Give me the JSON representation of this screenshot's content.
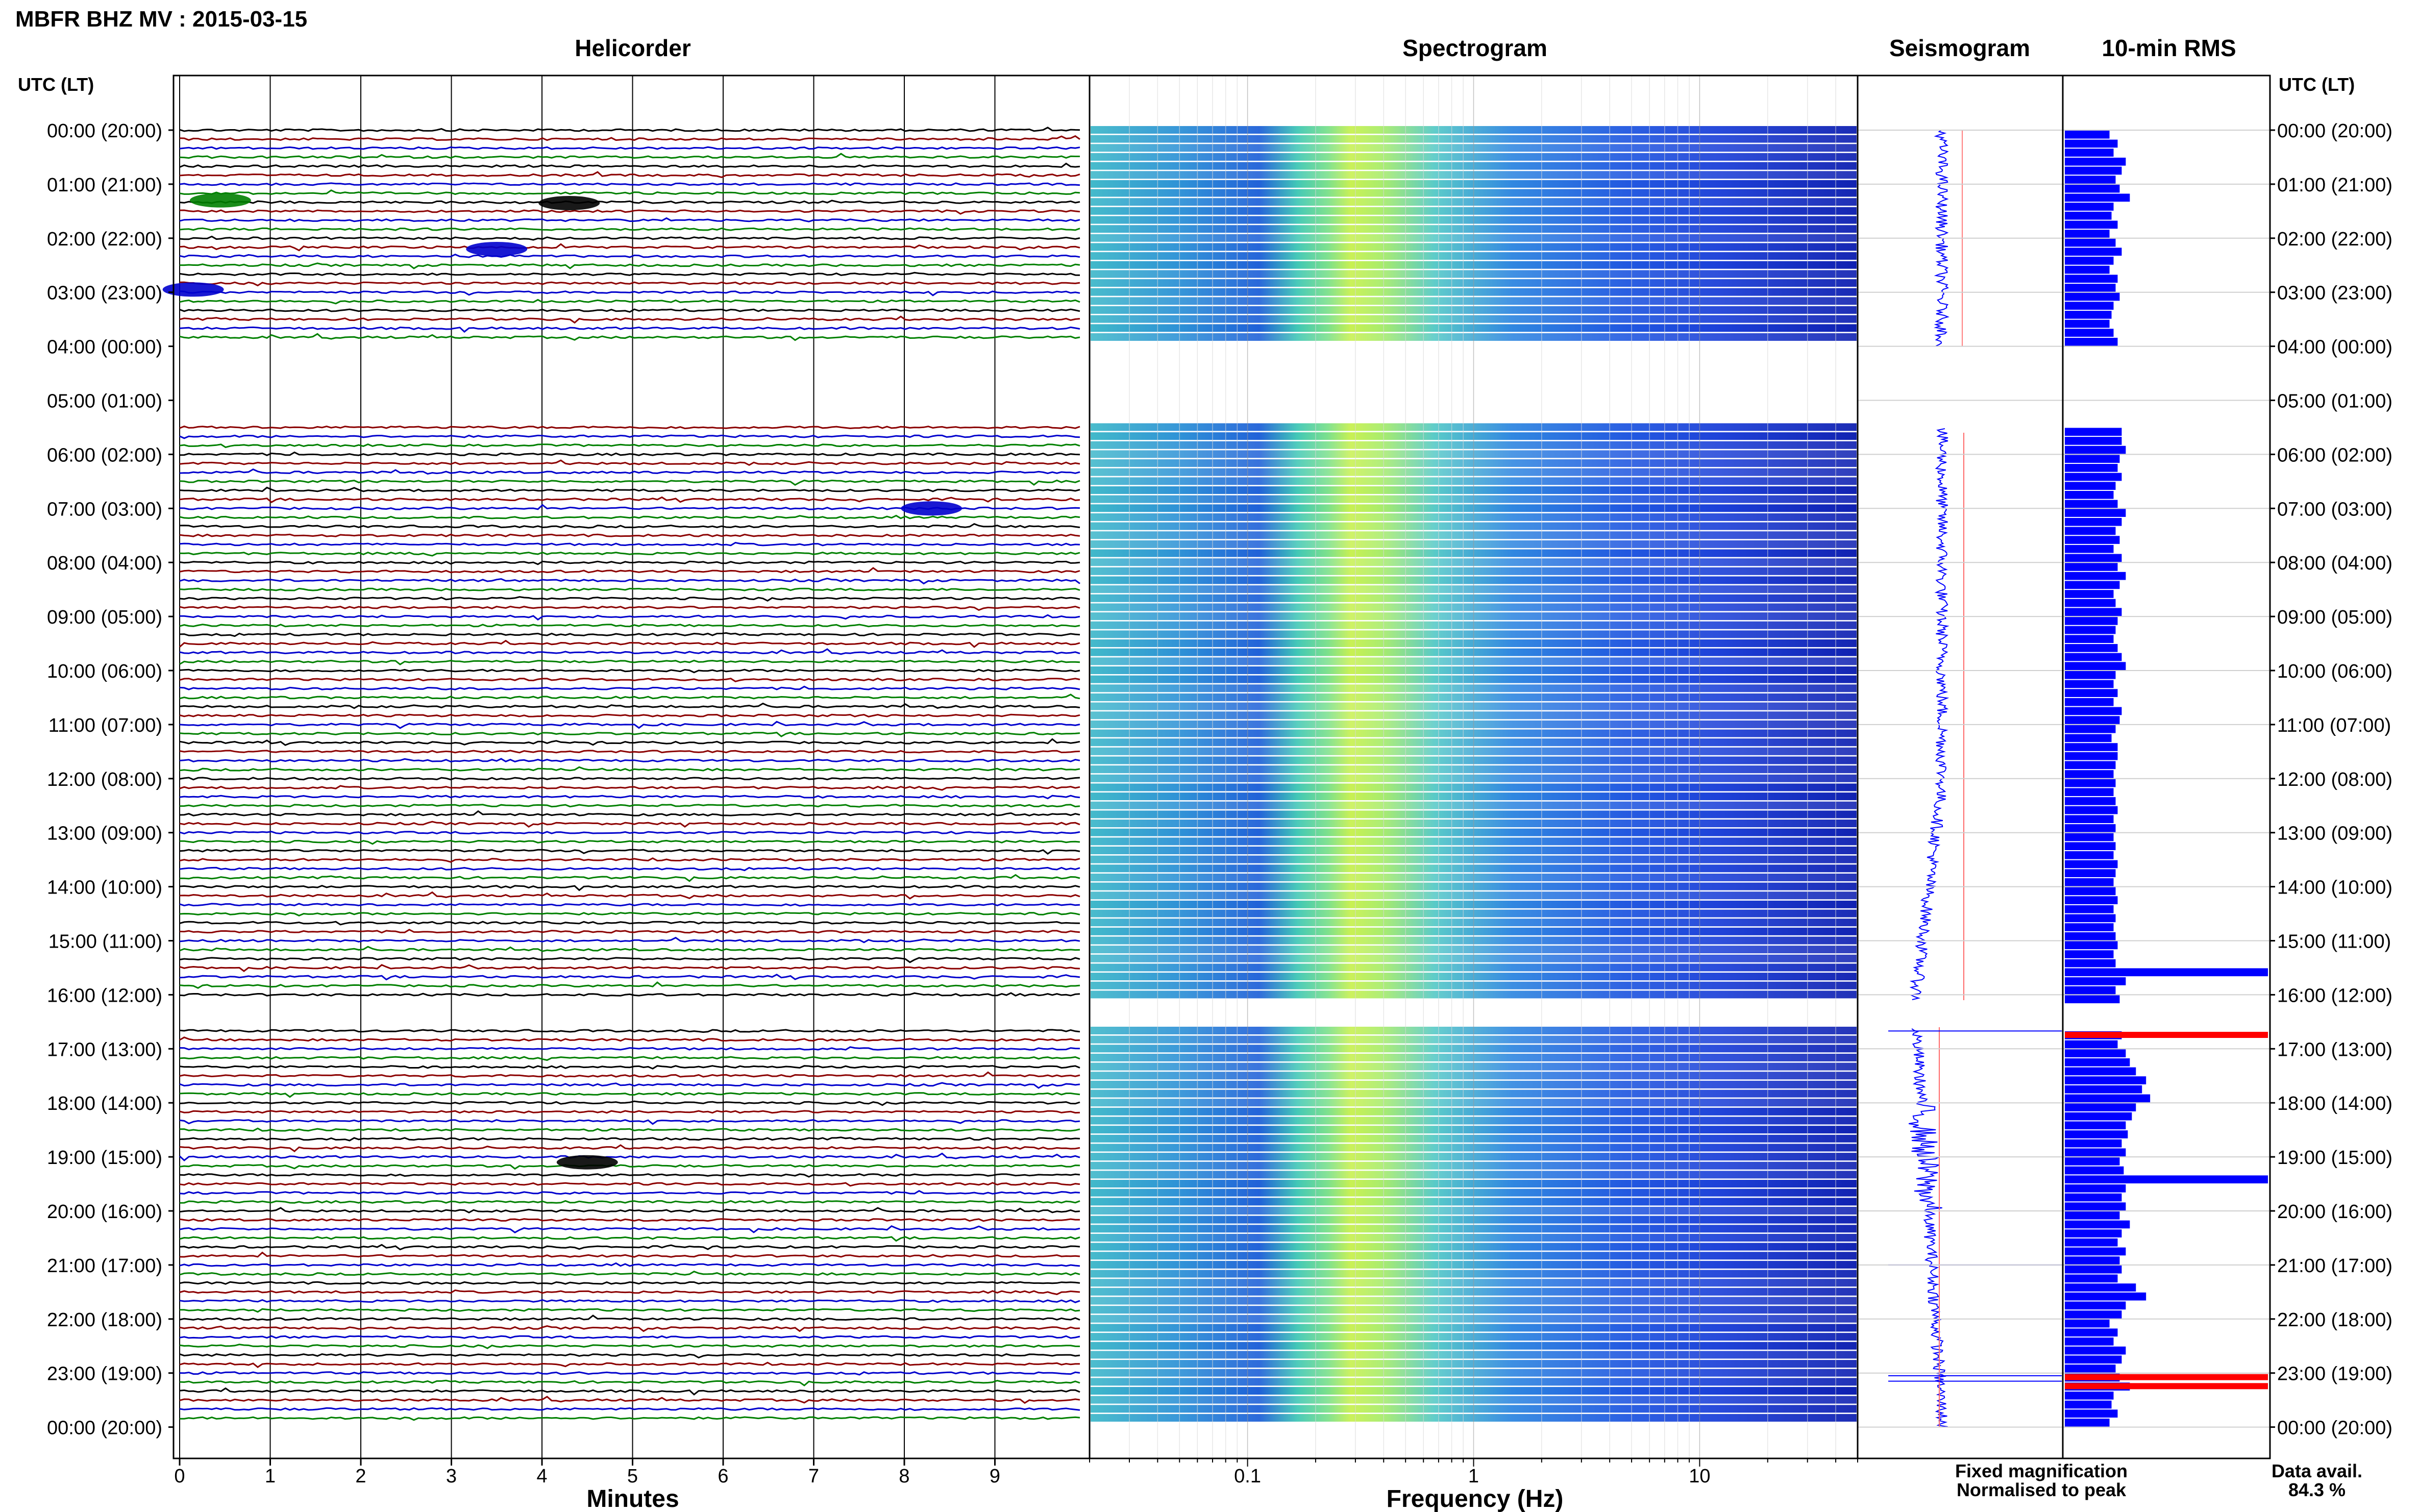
{
  "header": {
    "title": "MBFR BHZ MV : 2015-03-15"
  },
  "panels": {
    "helicorder": "Helicorder",
    "spectrogram": "Spectrogram",
    "seismogram": "Seismogram",
    "rms": "10-min RMS"
  },
  "axis": {
    "utc_lt_left": "UTC (LT)",
    "utc_lt_right": "UTC (LT)",
    "minutes_label": "Minutes",
    "frequency_label": "Frequency (Hz)"
  },
  "legend": {
    "fixed": "Fixed magnification",
    "normalised": "Normalised to peak",
    "fixed_color": "#0000ff",
    "normalised_color": "#ff0000"
  },
  "data_avail": {
    "label": "Data avail.",
    "value": "84.3 %"
  },
  "colors": {
    "trace_cycle": [
      "#000000",
      "#8b0000",
      "#0000cd",
      "#008000"
    ],
    "rms_bar": "#0000ff",
    "rms_peak": "#ff0000"
  },
  "chart_data": [
    {
      "type": "line",
      "title": "Helicorder",
      "xlabel": "Minutes",
      "ylabel": "UTC (LT)",
      "xlim": [
        0,
        10
      ],
      "xticks": [
        "0",
        "1",
        "2",
        "3",
        "4",
        "5",
        "6",
        "7",
        "8",
        "9"
      ],
      "yticks": [
        "00:00 (20:00)",
        "01:00 (21:00)",
        "02:00 (22:00)",
        "03:00 (23:00)",
        "04:00 (00:00)",
        "05:00 (01:00)",
        "06:00 (02:00)",
        "07:00 (03:00)",
        "08:00 (04:00)",
        "09:00 (05:00)",
        "10:00 (06:00)",
        "11:00 (07:00)",
        "12:00 (08:00)",
        "13:00 (09:00)",
        "14:00 (10:00)",
        "15:00 (11:00)",
        "16:00 (12:00)",
        "17:00 (13:00)",
        "18:00 (14:00)",
        "19:00 (15:00)",
        "20:00 (16:00)",
        "21:00 (17:00)",
        "22:00 (18:00)",
        "23:00 (19:00)",
        "00:00 (20:00)"
      ],
      "data_gaps_hours": [
        [
          4.0,
          5.5
        ],
        [
          16.1,
          16.6
        ]
      ]
    },
    {
      "type": "heatmap",
      "title": "Spectrogram",
      "xlabel": "Frequency (Hz)",
      "x_scale": "log",
      "xlim": [
        0.02,
        50
      ],
      "xticks": [
        "0.1",
        "1",
        "10"
      ],
      "peak_energy_band_hz": [
        0.15,
        0.5
      ]
    },
    {
      "type": "line",
      "title": "Seismogram"
    },
    {
      "type": "bar",
      "title": "10-min RMS",
      "series": [
        {
          "name": "Fixed magnification",
          "values": [
            0.22,
            0.26,
            0.24,
            0.3,
            0.28,
            0.25,
            0.27,
            0.32,
            0.24,
            0.23,
            0.26,
            0.22,
            0.25,
            0.28,
            0.24,
            0.22,
            0.26,
            0.25,
            0.27,
            0.24,
            0.23,
            0.22,
            0.24,
            0.26,
            0.28,
            0.28,
            0.3,
            0.27,
            0.26,
            0.28,
            0.25,
            0.24,
            0.26,
            0.3,
            0.28,
            0.25,
            0.27,
            0.24,
            0.28,
            0.26,
            0.3,
            0.27,
            0.24,
            0.25,
            0.28,
            0.26,
            0.25,
            0.24,
            0.26,
            0.28,
            0.3,
            0.25,
            0.24,
            0.26,
            0.24,
            0.28,
            0.27,
            0.25,
            0.23,
            0.26,
            0.26,
            0.25,
            0.24,
            0.25,
            0.24,
            0.25,
            0.26,
            0.24,
            0.25,
            0.24,
            0.25,
            0.24,
            0.26,
            0.25,
            0.24,
            0.25,
            0.26,
            0.24,
            0.25,
            0.24,
            0.25,
            0.26,
            0.24,
            0.25,
            1.0,
            0.3,
            0.25,
            0.27,
            0.28,
            0.26,
            0.3,
            0.32,
            0.35,
            0.4,
            0.38,
            0.42,
            0.35,
            0.33,
            0.3,
            0.31,
            0.28,
            0.3,
            0.27,
            0.29,
            1.0,
            0.3,
            0.28,
            0.3,
            0.27,
            0.32,
            0.28,
            0.26,
            0.3,
            0.27,
            0.28,
            0.26,
            0.35,
            0.4,
            0.3,
            0.28
          ]
        },
        {
          "name": "Normalised to peak",
          "peaks_utc": [
            "16:40",
            "23:00",
            "23:10"
          ]
        }
      ]
    }
  ]
}
